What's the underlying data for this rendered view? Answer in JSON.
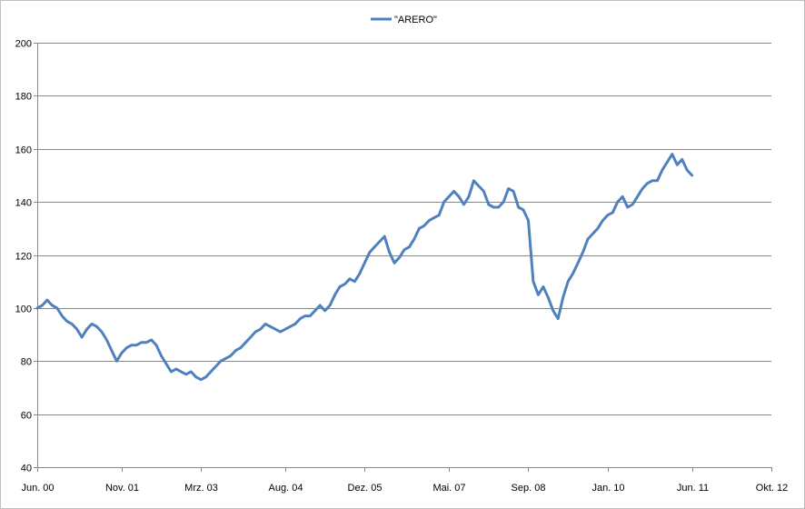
{
  "chart_data": {
    "type": "line",
    "legend_position": "top-center",
    "grid": {
      "horizontal": true,
      "vertical": false
    },
    "ylim": [
      40,
      200
    ],
    "yticks": [
      40,
      60,
      80,
      100,
      120,
      140,
      160,
      180,
      200
    ],
    "xlim": [
      "2000-06",
      "2012-10"
    ],
    "xticks": [
      {
        "date": "2000-06",
        "label": "Jun. 00"
      },
      {
        "date": "2001-11",
        "label": "Nov. 01"
      },
      {
        "date": "2003-03",
        "label": "Mrz. 03"
      },
      {
        "date": "2004-08",
        "label": "Aug. 04"
      },
      {
        "date": "2005-12",
        "label": "Dez. 05"
      },
      {
        "date": "2007-05",
        "label": "Mai. 07"
      },
      {
        "date": "2008-09",
        "label": "Sep. 08"
      },
      {
        "date": "2010-01",
        "label": "Jan. 10"
      },
      {
        "date": "2011-06",
        "label": "Jun. 11"
      },
      {
        "date": "2012-10",
        "label": "Okt. 12"
      }
    ],
    "series": [
      {
        "name": "\"ARERO\"",
        "color": "#4F81BD",
        "points": [
          [
            "2000-06",
            100
          ],
          [
            "2000-07",
            101
          ],
          [
            "2000-08",
            103
          ],
          [
            "2000-09",
            101
          ],
          [
            "2000-10",
            100
          ],
          [
            "2000-11",
            97
          ],
          [
            "2000-12",
            95
          ],
          [
            "2001-01",
            94
          ],
          [
            "2001-02",
            92
          ],
          [
            "2001-03",
            89
          ],
          [
            "2001-04",
            92
          ],
          [
            "2001-05",
            94
          ],
          [
            "2001-06",
            93
          ],
          [
            "2001-07",
            91
          ],
          [
            "2001-08",
            88
          ],
          [
            "2001-09",
            84
          ],
          [
            "2001-10",
            80
          ],
          [
            "2001-11",
            83
          ],
          [
            "2001-12",
            85
          ],
          [
            "2002-01",
            86
          ],
          [
            "2002-02",
            86
          ],
          [
            "2002-03",
            87
          ],
          [
            "2002-04",
            87
          ],
          [
            "2002-05",
            88
          ],
          [
            "2002-06",
            86
          ],
          [
            "2002-07",
            82
          ],
          [
            "2002-08",
            79
          ],
          [
            "2002-09",
            76
          ],
          [
            "2002-10",
            77
          ],
          [
            "2002-11",
            76
          ],
          [
            "2002-12",
            75
          ],
          [
            "2003-01",
            76
          ],
          [
            "2003-02",
            74
          ],
          [
            "2003-03",
            73
          ],
          [
            "2003-04",
            74
          ],
          [
            "2003-05",
            76
          ],
          [
            "2003-06",
            78
          ],
          [
            "2003-07",
            80
          ],
          [
            "2003-08",
            81
          ],
          [
            "2003-09",
            82
          ],
          [
            "2003-10",
            84
          ],
          [
            "2003-11",
            85
          ],
          [
            "2003-12",
            87
          ],
          [
            "2004-01",
            89
          ],
          [
            "2004-02",
            91
          ],
          [
            "2004-03",
            92
          ],
          [
            "2004-04",
            94
          ],
          [
            "2004-05",
            93
          ],
          [
            "2004-06",
            92
          ],
          [
            "2004-07",
            91
          ],
          [
            "2004-08",
            92
          ],
          [
            "2004-09",
            93
          ],
          [
            "2004-10",
            94
          ],
          [
            "2004-11",
            96
          ],
          [
            "2004-12",
            97
          ],
          [
            "2005-01",
            97
          ],
          [
            "2005-02",
            99
          ],
          [
            "2005-03",
            101
          ],
          [
            "2005-04",
            99
          ],
          [
            "2005-05",
            101
          ],
          [
            "2005-06",
            105
          ],
          [
            "2005-07",
            108
          ],
          [
            "2005-08",
            109
          ],
          [
            "2005-09",
            111
          ],
          [
            "2005-10",
            110
          ],
          [
            "2005-11",
            113
          ],
          [
            "2005-12",
            117
          ],
          [
            "2006-01",
            121
          ],
          [
            "2006-02",
            123
          ],
          [
            "2006-03",
            125
          ],
          [
            "2006-04",
            127
          ],
          [
            "2006-05",
            121
          ],
          [
            "2006-06",
            117
          ],
          [
            "2006-07",
            119
          ],
          [
            "2006-08",
            122
          ],
          [
            "2006-09",
            123
          ],
          [
            "2006-10",
            126
          ],
          [
            "2006-11",
            130
          ],
          [
            "2006-12",
            131
          ],
          [
            "2007-01",
            133
          ],
          [
            "2007-02",
            134
          ],
          [
            "2007-03",
            135
          ],
          [
            "2007-04",
            140
          ],
          [
            "2007-05",
            142
          ],
          [
            "2007-06",
            144
          ],
          [
            "2007-07",
            142
          ],
          [
            "2007-08",
            139
          ],
          [
            "2007-09",
            142
          ],
          [
            "2007-10",
            148
          ],
          [
            "2007-11",
            146
          ],
          [
            "2007-12",
            144
          ],
          [
            "2008-01",
            139
          ],
          [
            "2008-02",
            138
          ],
          [
            "2008-03",
            138
          ],
          [
            "2008-04",
            140
          ],
          [
            "2008-05",
            145
          ],
          [
            "2008-06",
            144
          ],
          [
            "2008-07",
            138
          ],
          [
            "2008-08",
            137
          ],
          [
            "2008-09",
            133
          ],
          [
            "2008-10",
            110
          ],
          [
            "2008-11",
            105
          ],
          [
            "2008-12",
            108
          ],
          [
            "2009-01",
            104
          ],
          [
            "2009-02",
            99
          ],
          [
            "2009-03",
            96
          ],
          [
            "2009-04",
            104
          ],
          [
            "2009-05",
            110
          ],
          [
            "2009-06",
            113
          ],
          [
            "2009-07",
            117
          ],
          [
            "2009-08",
            121
          ],
          [
            "2009-09",
            126
          ],
          [
            "2009-10",
            128
          ],
          [
            "2009-11",
            130
          ],
          [
            "2009-12",
            133
          ],
          [
            "2010-01",
            135
          ],
          [
            "2010-02",
            136
          ],
          [
            "2010-03",
            140
          ],
          [
            "2010-04",
            142
          ],
          [
            "2010-05",
            138
          ],
          [
            "2010-06",
            139
          ],
          [
            "2010-07",
            142
          ],
          [
            "2010-08",
            145
          ],
          [
            "2010-09",
            147
          ],
          [
            "2010-10",
            148
          ],
          [
            "2010-11",
            148
          ],
          [
            "2010-12",
            152
          ],
          [
            "2011-01",
            155
          ],
          [
            "2011-02",
            158
          ],
          [
            "2011-03",
            154
          ],
          [
            "2011-04",
            156
          ],
          [
            "2011-05",
            152
          ],
          [
            "2011-06",
            150
          ]
        ]
      }
    ]
  }
}
